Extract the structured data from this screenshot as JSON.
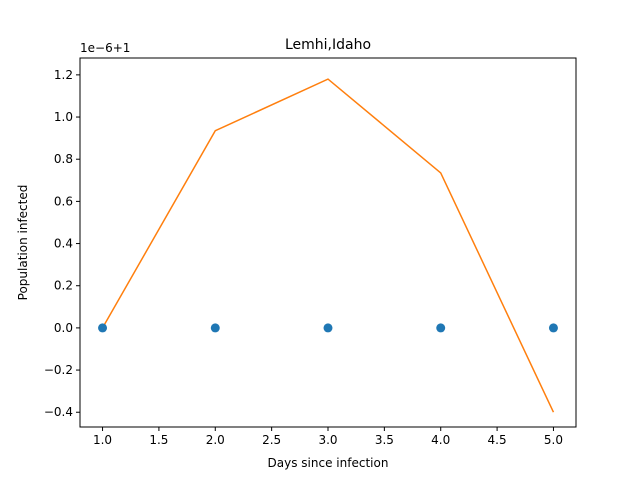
{
  "chart_data": {
    "type": "line",
    "title": "Lemhi,Idaho",
    "xlabel": "Days since infection",
    "ylabel": "Population infected",
    "offset_text": "1e−6+1",
    "xlim": [
      0.8,
      5.2
    ],
    "ylim": [
      -0.47,
      1.28
    ],
    "xticks": [
      1.0,
      1.5,
      2.0,
      2.5,
      3.0,
      3.5,
      4.0,
      4.5,
      5.0
    ],
    "xtick_labels": [
      "1.0",
      "1.5",
      "2.0",
      "2.5",
      "3.0",
      "3.5",
      "4.0",
      "4.5",
      "5.0"
    ],
    "yticks": [
      -0.4,
      -0.2,
      0.0,
      0.2,
      0.4,
      0.6,
      0.8,
      1.0,
      1.2
    ],
    "ytick_labels": [
      "−0.4",
      "−0.2",
      "0.0",
      "0.2",
      "0.4",
      "0.6",
      "0.8",
      "1.0",
      "1.2"
    ],
    "grid": false,
    "series": [
      {
        "kind": "scatter",
        "color": "#1f77b4",
        "x": [
          1,
          2,
          3,
          4,
          5
        ],
        "y": [
          0.0,
          0.0,
          0.0,
          0.0,
          0.0
        ]
      },
      {
        "kind": "line",
        "color": "#ff7f0e",
        "x": [
          1,
          2,
          3,
          4,
          5
        ],
        "y": [
          0.0,
          0.935,
          1.18,
          0.735,
          -0.4
        ]
      }
    ]
  }
}
